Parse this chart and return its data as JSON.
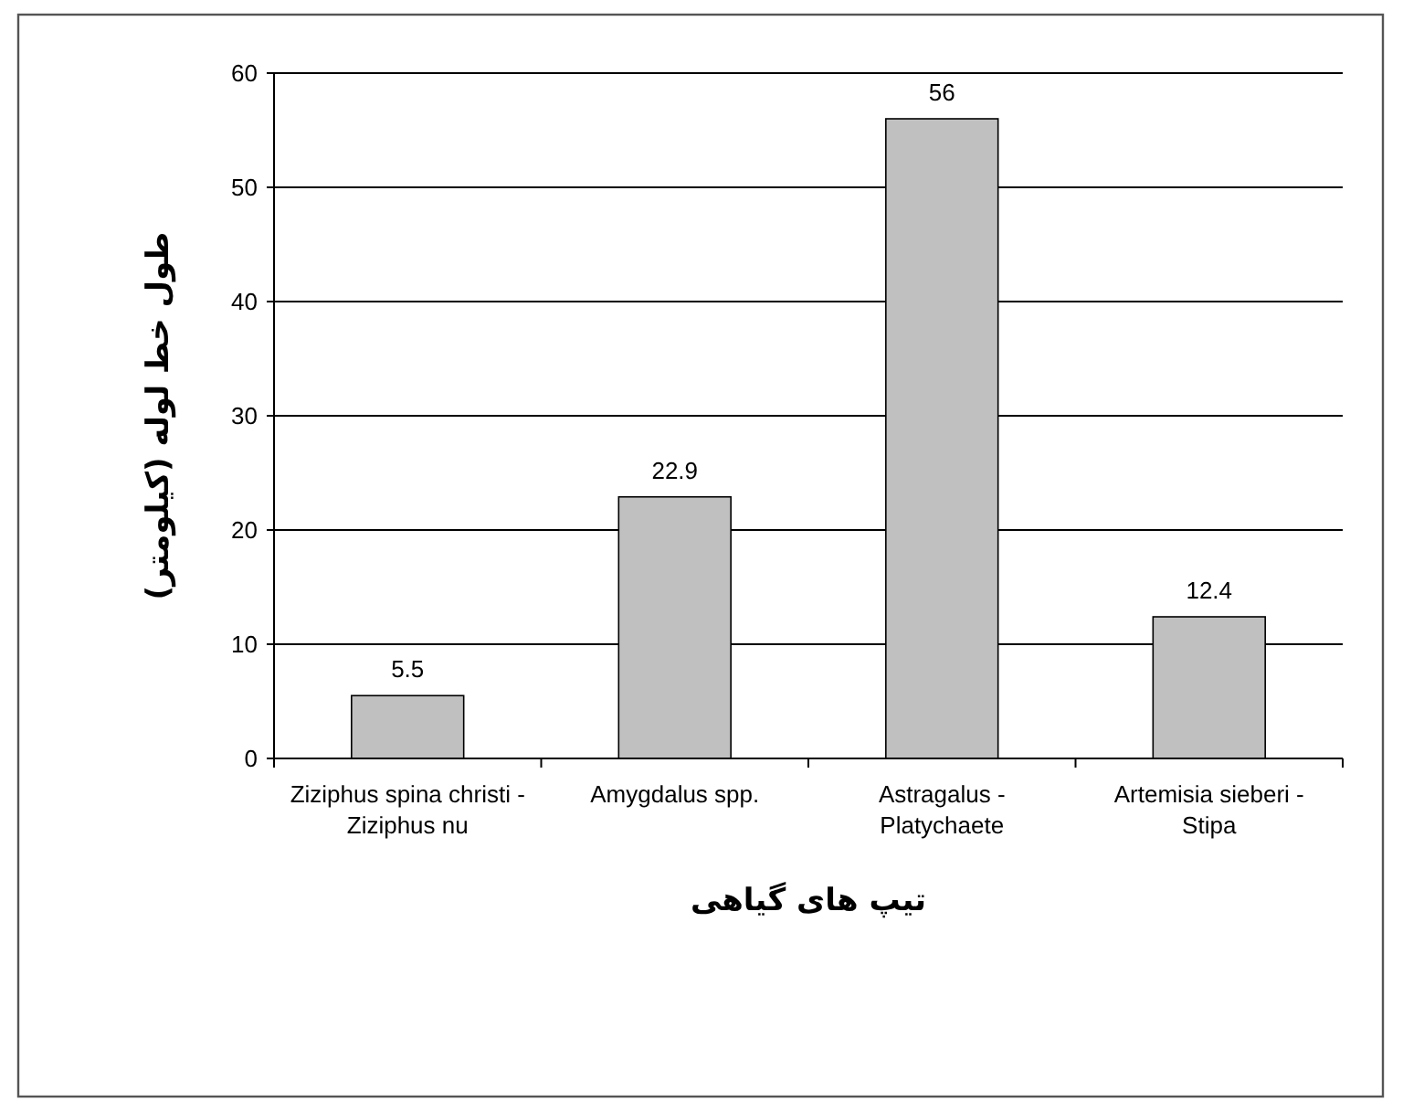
{
  "chart_data": {
    "type": "bar",
    "xlabel": "تیپ های گیاهی",
    "ylabel": "طول خط لوله (کیلومتر)",
    "categories": [
      "Ziziphus spina christi - Ziziphus nu",
      "Amygdalus spp.",
      "Astragalus - Platychaete",
      "Artemisia sieberi - Stipa"
    ],
    "values": [
      5.5,
      22.9,
      56,
      12.4
    ],
    "color": "#c0c0c0",
    "ylim": [
      0,
      60
    ],
    "yticks": [
      0,
      10,
      20,
      30,
      40,
      50,
      60
    ],
    "grid": "y",
    "data_labels": true
  }
}
